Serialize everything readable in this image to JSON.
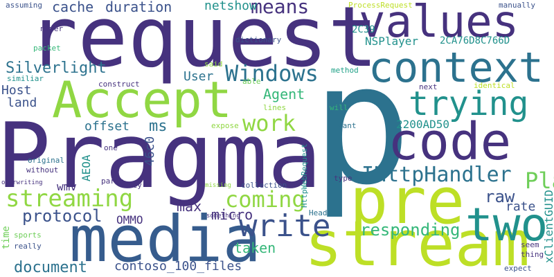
{
  "colors": {
    "background": "#ffffff",
    "dark_purple": "#46327e",
    "indigo": "#3b528b",
    "blue": "#365c8d",
    "steel": "#2c728e",
    "teal": "#21918c",
    "green_teal": "#1fa187",
    "green": "#35b779",
    "lime": "#6ece58",
    "yellow_green": "#90d743",
    "yellow": "#bddf26"
  },
  "words": {
    "p": "p",
    "request": "request",
    "pragma": "Pragma",
    "pre": "pre",
    "media": "media",
    "stream": "stream",
    "code": "code",
    "accept": "Accept",
    "values": "values",
    "context": "context",
    "two": "two",
    "write": "write",
    "trying": "trying",
    "windows": "Windows",
    "streaming": "streaming",
    "work": "work",
    "player": "Player",
    "ihttphandler": "IHttpHandler",
    "coming": "coming",
    "responding": "responding",
    "silverlight": "Silverlight",
    "means": "means",
    "cache": "cache",
    "duration": "duration",
    "protocol": "protocol",
    "document": "document",
    "raw": "raw",
    "netshow": "netshow",
    "host": "Host",
    "agent": "Agent",
    "land": "land",
    "user": "User",
    "offset": "offset",
    "ms": "ms",
    "max": "max",
    "micro": "micro",
    "taken": "taken",
    "contoso": "contoso_100_files",
    "rate": "rate",
    "xclientguid": "xClientGUID",
    "nsplayer": "NSPlayer",
    "hex1": "2CA76D8C766D",
    "hex2": "2C39",
    "hex3": "2200AD50",
    "c46": "46c0",
    "aeoa": "AEOA",
    "ommo": "OMMO",
    "wmv": "wmv",
    "time": "time",
    "assuming": "assuming",
    "never": "never",
    "packet": "packet",
    "similiar": "similiar",
    "construct": "construct",
    "secondary": "secondary",
    "dictionary": "dictionary",
    "said": "said",
    "processrequest": "ProcessRequest",
    "manually": "manually",
    "method": "method",
    "able": "able",
    "next": "next",
    "identical": "identical",
    "lines": "lines",
    "will": "will",
    "expose": "expose",
    "want": "want",
    "one": "one",
    "original": "original",
    "without": "without",
    "parse": "parse",
    "key": "key",
    "overwriting": "overwriting",
    "missing": "missing",
    "collection": "collection",
    "httpwebrequest": "HttpWebRequest",
    "type": "type",
    "something": "something",
    "headers": "Headers",
    "sports": "sports",
    "really": "really",
    "seem": "seem",
    "thing": "thing",
    "expect": "expect"
  }
}
